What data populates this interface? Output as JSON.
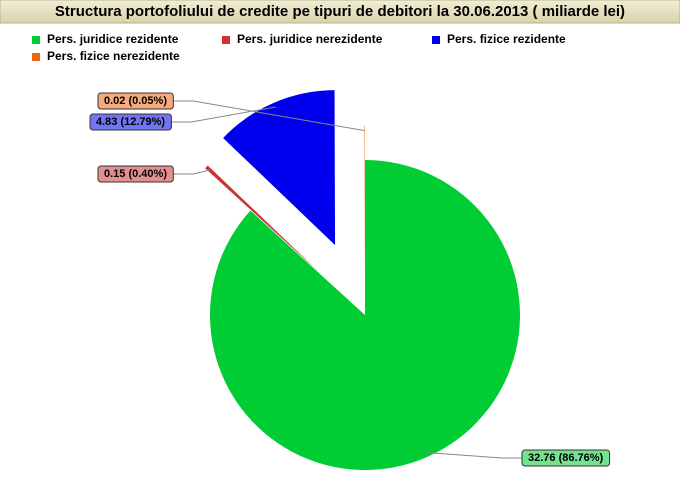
{
  "chart_data": {
    "type": "pie",
    "title": "Structura portofoliului de credite pe tipuri de debitori la 30.06.2013 ( miliarde lei)",
    "categories": [
      "Pers. juridice rezidente",
      "Pers. juridice nerezidente",
      "Pers. fizice rezidente",
      "Pers. fizice nerezidente"
    ],
    "values": [
      32.76,
      0.15,
      4.83,
      0.02
    ],
    "value_labels": [
      "32.76 (86.76%)",
      "0.15 (0.40%)",
      "4.83 (12.79%)",
      "0.02 (0.05%)"
    ],
    "colors": [
      "#00cc33",
      "#cc3333",
      "#0000ee",
      "#ee6611"
    ]
  }
}
